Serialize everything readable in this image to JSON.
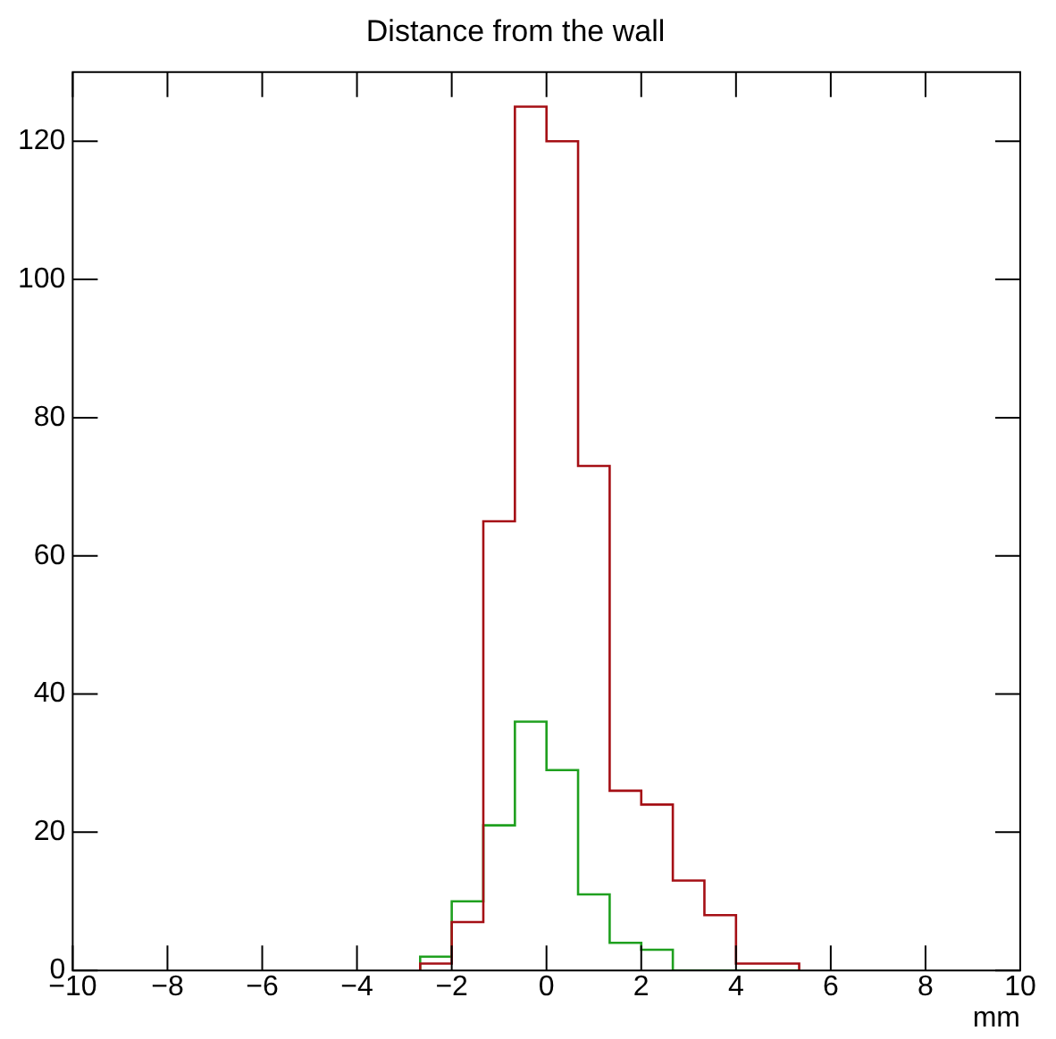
{
  "chart_data": {
    "type": "histogram",
    "title": "Distance from the wall",
    "xlabel": "mm",
    "bins": [
      -2.6667,
      -2,
      -1.3333,
      -0.6667,
      0,
      0.6667,
      1.3333,
      2,
      2.6667,
      3.3333,
      4,
      4.6667,
      5.3333
    ],
    "series": [
      {
        "color": "#a50f15",
        "values": [
          1,
          7,
          65,
          125,
          120,
          73,
          26,
          24,
          13,
          8,
          1,
          1
        ]
      },
      {
        "color": "#1fa01f",
        "values": [
          2,
          10,
          21,
          36,
          29,
          11,
          4,
          3,
          0,
          0,
          0,
          0
        ]
      }
    ],
    "xlim": [
      -10,
      10
    ],
    "xticks": [
      -10,
      -8,
      -6,
      -4,
      -2,
      0,
      2,
      4,
      6,
      8,
      10
    ],
    "ylim": [
      0,
      130
    ],
    "yticks": [
      0,
      20,
      40,
      60,
      80,
      100,
      120
    ],
    "grid": false,
    "legend": false
  }
}
